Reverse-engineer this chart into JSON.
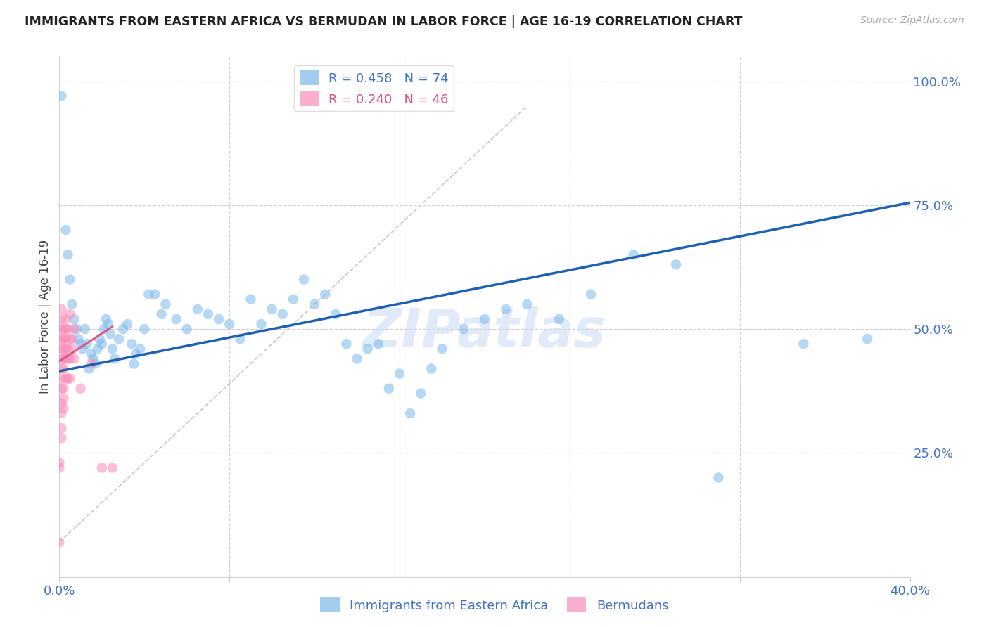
{
  "title": "IMMIGRANTS FROM EASTERN AFRICA VS BERMUDAN IN LABOR FORCE | AGE 16-19 CORRELATION CHART",
  "source": "Source: ZipAtlas.com",
  "ylabel": "In Labor Force | Age 16-19",
  "watermark": "ZIPatlas",
  "xlim": [
    0.0,
    0.4
  ],
  "ylim": [
    0.0,
    1.05
  ],
  "xtick_vals": [
    0.0,
    0.08,
    0.16,
    0.24,
    0.32,
    0.4
  ],
  "xtick_labels": [
    "0.0%",
    "",
    "",
    "",
    "",
    "40.0%"
  ],
  "ytick_vals": [
    0.25,
    0.5,
    0.75,
    1.0
  ],
  "ytick_labels": [
    "25.0%",
    "50.0%",
    "75.0%",
    "100.0%"
  ],
  "legend1_label": "R = 0.458   N = 74",
  "legend2_label": "R = 0.240   N = 46",
  "color_blue": "#7db8e8",
  "color_pink": "#f78db8",
  "color_trendline_blue": "#2060b0",
  "color_trendline_pink": "#e0406080",
  "grid_color": "#d0d0d0",
  "axis_color": "#4472c4",
  "blue_scatter": [
    [
      0.001,
      0.97
    ],
    [
      0.003,
      0.7
    ],
    [
      0.004,
      0.65
    ],
    [
      0.005,
      0.6
    ],
    [
      0.006,
      0.55
    ],
    [
      0.007,
      0.52
    ],
    [
      0.008,
      0.5
    ],
    [
      0.009,
      0.48
    ],
    [
      0.01,
      0.47
    ],
    [
      0.011,
      0.46
    ],
    [
      0.012,
      0.5
    ],
    [
      0.013,
      0.47
    ],
    [
      0.014,
      0.42
    ],
    [
      0.015,
      0.45
    ],
    [
      0.016,
      0.44
    ],
    [
      0.017,
      0.43
    ],
    [
      0.018,
      0.46
    ],
    [
      0.019,
      0.48
    ],
    [
      0.02,
      0.47
    ],
    [
      0.021,
      0.5
    ],
    [
      0.022,
      0.52
    ],
    [
      0.023,
      0.51
    ],
    [
      0.024,
      0.49
    ],
    [
      0.025,
      0.46
    ],
    [
      0.026,
      0.44
    ],
    [
      0.028,
      0.48
    ],
    [
      0.03,
      0.5
    ],
    [
      0.032,
      0.51
    ],
    [
      0.034,
      0.47
    ],
    [
      0.035,
      0.43
    ],
    [
      0.036,
      0.45
    ],
    [
      0.038,
      0.46
    ],
    [
      0.04,
      0.5
    ],
    [
      0.042,
      0.57
    ],
    [
      0.045,
      0.57
    ],
    [
      0.048,
      0.53
    ],
    [
      0.05,
      0.55
    ],
    [
      0.055,
      0.52
    ],
    [
      0.06,
      0.5
    ],
    [
      0.065,
      0.54
    ],
    [
      0.07,
      0.53
    ],
    [
      0.075,
      0.52
    ],
    [
      0.08,
      0.51
    ],
    [
      0.085,
      0.48
    ],
    [
      0.09,
      0.56
    ],
    [
      0.095,
      0.51
    ],
    [
      0.1,
      0.54
    ],
    [
      0.105,
      0.53
    ],
    [
      0.11,
      0.56
    ],
    [
      0.115,
      0.6
    ],
    [
      0.12,
      0.55
    ],
    [
      0.125,
      0.57
    ],
    [
      0.13,
      0.53
    ],
    [
      0.135,
      0.47
    ],
    [
      0.14,
      0.44
    ],
    [
      0.145,
      0.46
    ],
    [
      0.15,
      0.47
    ],
    [
      0.155,
      0.38
    ],
    [
      0.16,
      0.41
    ],
    [
      0.165,
      0.33
    ],
    [
      0.17,
      0.37
    ],
    [
      0.175,
      0.42
    ],
    [
      0.18,
      0.46
    ],
    [
      0.19,
      0.5
    ],
    [
      0.2,
      0.52
    ],
    [
      0.21,
      0.54
    ],
    [
      0.22,
      0.55
    ],
    [
      0.235,
      0.52
    ],
    [
      0.25,
      0.57
    ],
    [
      0.27,
      0.65
    ],
    [
      0.29,
      0.63
    ],
    [
      0.31,
      0.2
    ],
    [
      0.35,
      0.47
    ],
    [
      0.38,
      0.48
    ]
  ],
  "pink_scatter": [
    [
      0.0,
      0.07
    ],
    [
      0.0,
      0.22
    ],
    [
      0.0,
      0.23
    ],
    [
      0.001,
      0.38
    ],
    [
      0.001,
      0.4
    ],
    [
      0.001,
      0.42
    ],
    [
      0.001,
      0.44
    ],
    [
      0.001,
      0.46
    ],
    [
      0.001,
      0.48
    ],
    [
      0.001,
      0.5
    ],
    [
      0.001,
      0.52
    ],
    [
      0.001,
      0.54
    ],
    [
      0.001,
      0.35
    ],
    [
      0.001,
      0.33
    ],
    [
      0.001,
      0.3
    ],
    [
      0.001,
      0.28
    ],
    [
      0.002,
      0.5
    ],
    [
      0.002,
      0.48
    ],
    [
      0.002,
      0.46
    ],
    [
      0.002,
      0.44
    ],
    [
      0.002,
      0.42
    ],
    [
      0.002,
      0.38
    ],
    [
      0.002,
      0.36
    ],
    [
      0.002,
      0.34
    ],
    [
      0.003,
      0.52
    ],
    [
      0.003,
      0.5
    ],
    [
      0.003,
      0.48
    ],
    [
      0.003,
      0.46
    ],
    [
      0.003,
      0.44
    ],
    [
      0.003,
      0.4
    ],
    [
      0.004,
      0.5
    ],
    [
      0.004,
      0.46
    ],
    [
      0.004,
      0.44
    ],
    [
      0.004,
      0.4
    ],
    [
      0.005,
      0.53
    ],
    [
      0.005,
      0.48
    ],
    [
      0.005,
      0.44
    ],
    [
      0.005,
      0.4
    ],
    [
      0.006,
      0.48
    ],
    [
      0.006,
      0.46
    ],
    [
      0.007,
      0.5
    ],
    [
      0.007,
      0.44
    ],
    [
      0.01,
      0.38
    ],
    [
      0.015,
      0.43
    ],
    [
      0.02,
      0.22
    ],
    [
      0.025,
      0.22
    ]
  ],
  "blue_trendline_x": [
    0.0,
    0.4
  ],
  "blue_trendline_y": [
    0.415,
    0.755
  ],
  "pink_trendline_x": [
    0.0,
    0.025
  ],
  "pink_trendline_y": [
    0.435,
    0.505
  ],
  "diag_trendline_x": [
    0.0,
    0.22
  ],
  "diag_trendline_y": [
    0.07,
    0.95
  ]
}
